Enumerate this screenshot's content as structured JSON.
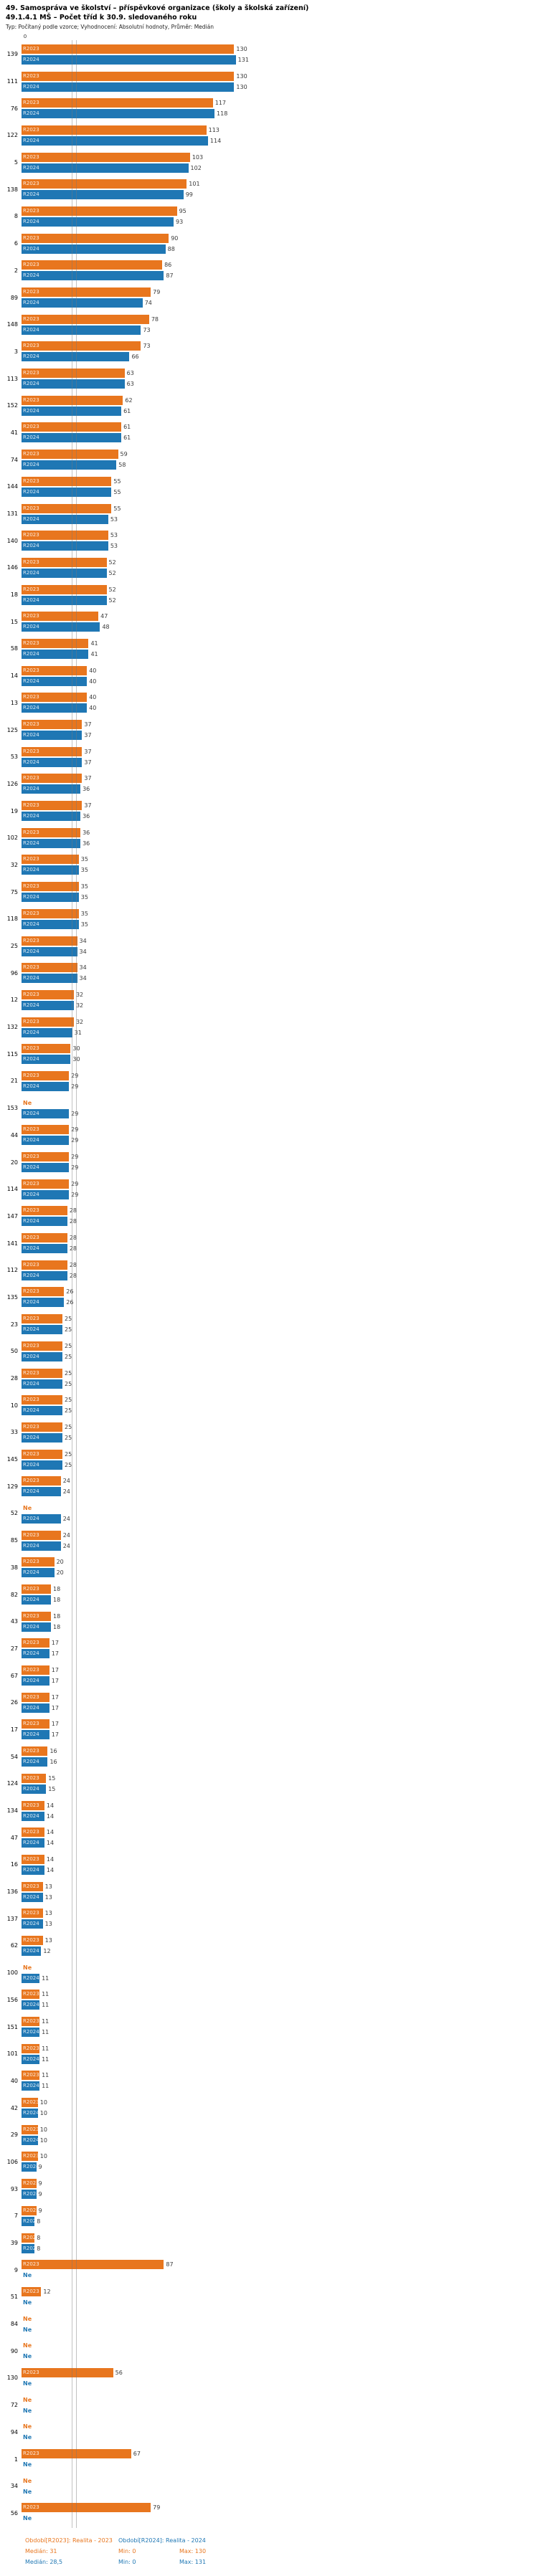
{
  "title": {
    "line1": "49. Samospráva ve školství – příspěvkové organizace (školy a školská zařízení)",
    "line2": "49.1.4.1 MŠ – Počet tříd k 30.9. sledovaného roku",
    "line3": "Typ: Počítaný podle vzorce; Vyhodnocení: Absolutní hodnoty, Průměr: Medián"
  },
  "chart_data": {
    "type": "bar",
    "orientation": "horizontal",
    "x_axis": {
      "origin_label": "0",
      "min": 0,
      "max": 131,
      "gridlines": false
    },
    "missing_label": "Ne",
    "legend_position": "bottom",
    "series": [
      {
        "key": "r2023",
        "code": "R2023",
        "name": "Období[R2023]: Realita - 2023",
        "color": "#E8761E",
        "median": 31,
        "min": 0,
        "max": 130
      },
      {
        "key": "r2024",
        "code": "R2024",
        "name": "Období[R2024]: Realita - 2024",
        "color": "#1F77B4",
        "median": 28.5,
        "min": 0,
        "max": 131
      }
    ],
    "groups": [
      {
        "id": "139",
        "r2023": 130,
        "r2024": 131
      },
      {
        "id": "111",
        "r2023": 130,
        "r2024": 130
      },
      {
        "id": "76",
        "r2023": 117,
        "r2024": 118
      },
      {
        "id": "122",
        "r2023": 113,
        "r2024": 114
      },
      {
        "id": "5",
        "r2023": 103,
        "r2024": 102
      },
      {
        "id": "138",
        "r2023": 101,
        "r2024": 99
      },
      {
        "id": "8",
        "r2023": 95,
        "r2024": 93
      },
      {
        "id": "6",
        "r2023": 90,
        "r2024": 88
      },
      {
        "id": "2",
        "r2023": 86,
        "r2024": 87
      },
      {
        "id": "89",
        "r2023": 79,
        "r2024": 74
      },
      {
        "id": "148",
        "r2023": 78,
        "r2024": 73
      },
      {
        "id": "3",
        "r2023": 73,
        "r2024": 66
      },
      {
        "id": "113",
        "r2023": 63,
        "r2024": 63
      },
      {
        "id": "152",
        "r2023": 62,
        "r2024": 61
      },
      {
        "id": "41",
        "r2023": 61,
        "r2024": 61
      },
      {
        "id": "74",
        "r2023": 59,
        "r2024": 58
      },
      {
        "id": "144",
        "r2023": 55,
        "r2024": 55
      },
      {
        "id": "131",
        "r2023": 55,
        "r2024": 53
      },
      {
        "id": "140",
        "r2023": 53,
        "r2024": 53
      },
      {
        "id": "146",
        "r2023": 52,
        "r2024": 52
      },
      {
        "id": "18",
        "r2023": 52,
        "r2024": 52
      },
      {
        "id": "15",
        "r2023": 47,
        "r2024": 48
      },
      {
        "id": "58",
        "r2023": 41,
        "r2024": 41
      },
      {
        "id": "14",
        "r2023": 40,
        "r2024": 40
      },
      {
        "id": "13",
        "r2023": 40,
        "r2024": 40
      },
      {
        "id": "125",
        "r2023": 37,
        "r2024": 37
      },
      {
        "id": "53",
        "r2023": 37,
        "r2024": 37
      },
      {
        "id": "126",
        "r2023": 37,
        "r2024": 36
      },
      {
        "id": "19",
        "r2023": 37,
        "r2024": 36
      },
      {
        "id": "102",
        "r2023": 36,
        "r2024": 36
      },
      {
        "id": "32",
        "r2023": 35,
        "r2024": 35
      },
      {
        "id": "75",
        "r2023": 35,
        "r2024": 35
      },
      {
        "id": "118",
        "r2023": 35,
        "r2024": 35
      },
      {
        "id": "25",
        "r2023": 34,
        "r2024": 34
      },
      {
        "id": "96",
        "r2023": 34,
        "r2024": 34
      },
      {
        "id": "12",
        "r2023": 32,
        "r2024": 32
      },
      {
        "id": "132",
        "r2023": 32,
        "r2024": 31
      },
      {
        "id": "115",
        "r2023": 30,
        "r2024": 30
      },
      {
        "id": "21",
        "r2023": 29,
        "r2024": 29
      },
      {
        "id": "153",
        "r2023": null,
        "r2024": 29
      },
      {
        "id": "44",
        "r2023": 29,
        "r2024": 29
      },
      {
        "id": "20",
        "r2023": 29,
        "r2024": 29
      },
      {
        "id": "114",
        "r2023": 29,
        "r2024": 29
      },
      {
        "id": "147",
        "r2023": 28,
        "r2024": 28
      },
      {
        "id": "141",
        "r2023": 28,
        "r2024": 28
      },
      {
        "id": "112",
        "r2023": 28,
        "r2024": 28
      },
      {
        "id": "135",
        "r2023": 26,
        "r2024": 26
      },
      {
        "id": "23",
        "r2023": 25,
        "r2024": 25
      },
      {
        "id": "50",
        "r2023": 25,
        "r2024": 25
      },
      {
        "id": "28",
        "r2023": 25,
        "r2024": 25
      },
      {
        "id": "10",
        "r2023": 25,
        "r2024": 25
      },
      {
        "id": "33",
        "r2023": 25,
        "r2024": 25
      },
      {
        "id": "145",
        "r2023": 25,
        "r2024": 25
      },
      {
        "id": "129",
        "r2023": 24,
        "r2024": 24
      },
      {
        "id": "52",
        "r2023": null,
        "r2024": 24
      },
      {
        "id": "85",
        "r2023": 24,
        "r2024": 24
      },
      {
        "id": "38",
        "r2023": 20,
        "r2024": 20
      },
      {
        "id": "82",
        "r2023": 18,
        "r2024": 18
      },
      {
        "id": "43",
        "r2023": 18,
        "r2024": 18
      },
      {
        "id": "27",
        "r2023": 17,
        "r2024": 17
      },
      {
        "id": "67",
        "r2023": 17,
        "r2024": 17
      },
      {
        "id": "26",
        "r2023": 17,
        "r2024": 17
      },
      {
        "id": "17",
        "r2023": 17,
        "r2024": 17
      },
      {
        "id": "54",
        "r2023": 16,
        "r2024": 16
      },
      {
        "id": "124",
        "r2023": 15,
        "r2024": 15
      },
      {
        "id": "134",
        "r2023": 14,
        "r2024": 14
      },
      {
        "id": "47",
        "r2023": 14,
        "r2024": 14
      },
      {
        "id": "16",
        "r2023": 14,
        "r2024": 14
      },
      {
        "id": "136",
        "r2023": 13,
        "r2024": 13
      },
      {
        "id": "137",
        "r2023": 13,
        "r2024": 13
      },
      {
        "id": "62",
        "r2023": 13,
        "r2024": 12
      },
      {
        "id": "100",
        "r2023": null,
        "r2024": 11
      },
      {
        "id": "156",
        "r2023": 11,
        "r2024": 11
      },
      {
        "id": "151",
        "r2023": 11,
        "r2024": 11
      },
      {
        "id": "101",
        "r2023": 11,
        "r2024": 11
      },
      {
        "id": "40",
        "r2023": 11,
        "r2024": 11
      },
      {
        "id": "42",
        "r2023": 10,
        "r2024": 10
      },
      {
        "id": "29",
        "r2023": 10,
        "r2024": 10
      },
      {
        "id": "106",
        "r2023": 10,
        "r2024": 9
      },
      {
        "id": "93",
        "r2023": 9,
        "r2024": 9
      },
      {
        "id": "7",
        "r2023": 9,
        "r2024": 8
      },
      {
        "id": "39",
        "r2023": 8,
        "r2024": 8
      },
      {
        "id": "9",
        "r2023": 87,
        "r2024": null
      },
      {
        "id": "51",
        "r2023": 12,
        "r2024": null
      },
      {
        "id": "84",
        "r2023": null,
        "r2024": null
      },
      {
        "id": "90",
        "r2023": null,
        "r2024": null
      },
      {
        "id": "130",
        "r2023": 56,
        "r2024": null
      },
      {
        "id": "72",
        "r2023": null,
        "r2024": null
      },
      {
        "id": "94",
        "r2023": null,
        "r2024": null
      },
      {
        "id": "1",
        "r2023": 67,
        "r2024": null
      },
      {
        "id": "34",
        "r2023": null,
        "r2024": null
      },
      {
        "id": "56",
        "r2023": 79,
        "r2024": null
      }
    ]
  },
  "legend": {
    "series": [
      {
        "label": "Období[R2023]: Realita - 2023",
        "stats": {
          "median": "Medián: 31",
          "min": "Min: 0",
          "max": "Max: 130"
        }
      },
      {
        "label": "Období[R2024]: Realita - 2024",
        "stats": {
          "median": "Medián: 28,5",
          "min": "Min: 0",
          "max": "Max: 131"
        }
      }
    ]
  }
}
